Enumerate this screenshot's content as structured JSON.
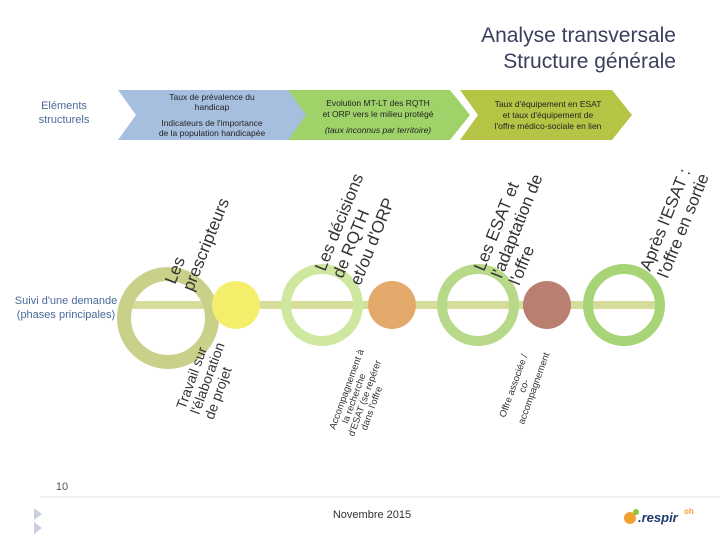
{
  "header": {
    "title": [
      "Analyse transversale",
      "Structure générale"
    ]
  },
  "left_labels": {
    "structural": [
      "Eléments",
      "structurels"
    ],
    "process": [
      "Suivi d'une demande",
      "(phases principales)"
    ]
  },
  "chevrons": [
    {
      "lines": [
        "Taux de prévalence du",
        "handicap"
      ],
      "sub": [
        "Indicateurs de l'importance",
        "de la population handicapée"
      ]
    },
    {
      "lines": [
        "Evolution MT-LT des RQTH",
        "et ORP vers le milieu protégé"
      ],
      "sub": [
        "(taux inconnus par territoire)"
      ]
    },
    {
      "lines": [
        "Taux d'équipement en ESAT",
        "et taux d'équipement de",
        "l'offre médico-sociale en lien"
      ],
      "sub": []
    }
  ],
  "upper_labels": [
    [
      "Les",
      "prescripteurs"
    ],
    [
      "Les décisions",
      "de RQTH",
      "et/ou d'ORP"
    ],
    [
      "Les ESAT et",
      "l'adaptation de",
      "l'offre"
    ],
    [
      "Après l'ESAT :",
      "l'offre en sortie"
    ]
  ],
  "lower_labels": [
    [
      "Travail sur",
      "l'élaboration",
      "de projet"
    ],
    [
      "Accompagnement à",
      "la recherche",
      "d'ESAT (se repérer",
      "dans l'offre"
    ],
    [
      "Offre associée /",
      "co-",
      "accompagnement"
    ]
  ],
  "footer": {
    "page": "10",
    "date": "Novembre 2015",
    "logo": ".respir",
    "logo_sup": "oh"
  }
}
